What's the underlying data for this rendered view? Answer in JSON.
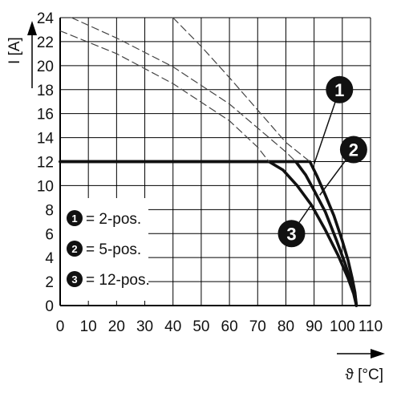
{
  "chart_data": {
    "type": "line",
    "title": "",
    "xlabel": "ϑ [°C]",
    "ylabel": "I [A]",
    "xlim": [
      0,
      110
    ],
    "ylim": [
      0,
      24
    ],
    "x_ticks": [
      "0",
      "10",
      "20",
      "30",
      "40",
      "50",
      "60",
      "70",
      "80",
      "90",
      "100",
      "110"
    ],
    "y_ticks": [
      "0",
      "2",
      "4",
      "6",
      "8",
      "10",
      "12",
      "14",
      "16",
      "18",
      "20",
      "22",
      "24"
    ],
    "grid": true,
    "legend_position": "bottom-left",
    "legend": [
      {
        "marker": "1",
        "label": "= 2-pos."
      },
      {
        "marker": "2",
        "label": "= 5-pos."
      },
      {
        "marker": "3",
        "label": "= 12-pos."
      }
    ],
    "series": [
      {
        "marker": "1",
        "style": "solid",
        "x": [
          0,
          88.5,
          91,
          94,
          97,
          100,
          102,
          103.5,
          104.5,
          105
        ],
        "y": [
          12,
          12,
          10.8,
          9.2,
          7.5,
          5.4,
          3.8,
          2.3,
          1.1,
          0
        ]
      },
      {
        "marker": "2",
        "style": "solid",
        "x": [
          0,
          83.5,
          87,
          90,
          94,
          98,
          101,
          103,
          104.5,
          105
        ],
        "y": [
          12,
          12,
          10.9,
          9.6,
          7.8,
          5.4,
          3.5,
          2,
          0.9,
          0
        ]
      },
      {
        "marker": "3",
        "style": "solid",
        "x": [
          0,
          74,
          79,
          84,
          89,
          94,
          98.5,
          102,
          104,
          105
        ],
        "y": [
          12,
          12,
          11.3,
          10,
          8.4,
          6.3,
          4.2,
          2.3,
          1,
          0
        ]
      },
      {
        "marker": "1",
        "style": "dashed",
        "x": [
          40,
          50,
          60,
          70,
          80,
          88.5
        ],
        "y": [
          24,
          21.6,
          19,
          16.3,
          13.6,
          12
        ]
      },
      {
        "marker": "2",
        "style": "dashed",
        "x": [
          4,
          20,
          40,
          60,
          70,
          80,
          83.5
        ],
        "y": [
          24,
          22.3,
          19.9,
          16.8,
          14.8,
          12.8,
          12
        ]
      },
      {
        "marker": "3",
        "style": "dashed",
        "x": [
          0,
          20,
          40,
          60,
          70,
          74
        ],
        "y": [
          22.9,
          21,
          18.5,
          15.4,
          13.2,
          12
        ]
      }
    ],
    "callouts": [
      {
        "marker": "1",
        "at_x": 90,
        "at_y": 11.8,
        "label_x": 99,
        "label_y": 18
      },
      {
        "marker": "2",
        "at_x": 92,
        "at_y": 9.2,
        "label_x": 104,
        "label_y": 13
      },
      {
        "marker": "3",
        "at_x": 89,
        "at_y": 8.4,
        "label_x": 82,
        "label_y": 6
      }
    ]
  }
}
